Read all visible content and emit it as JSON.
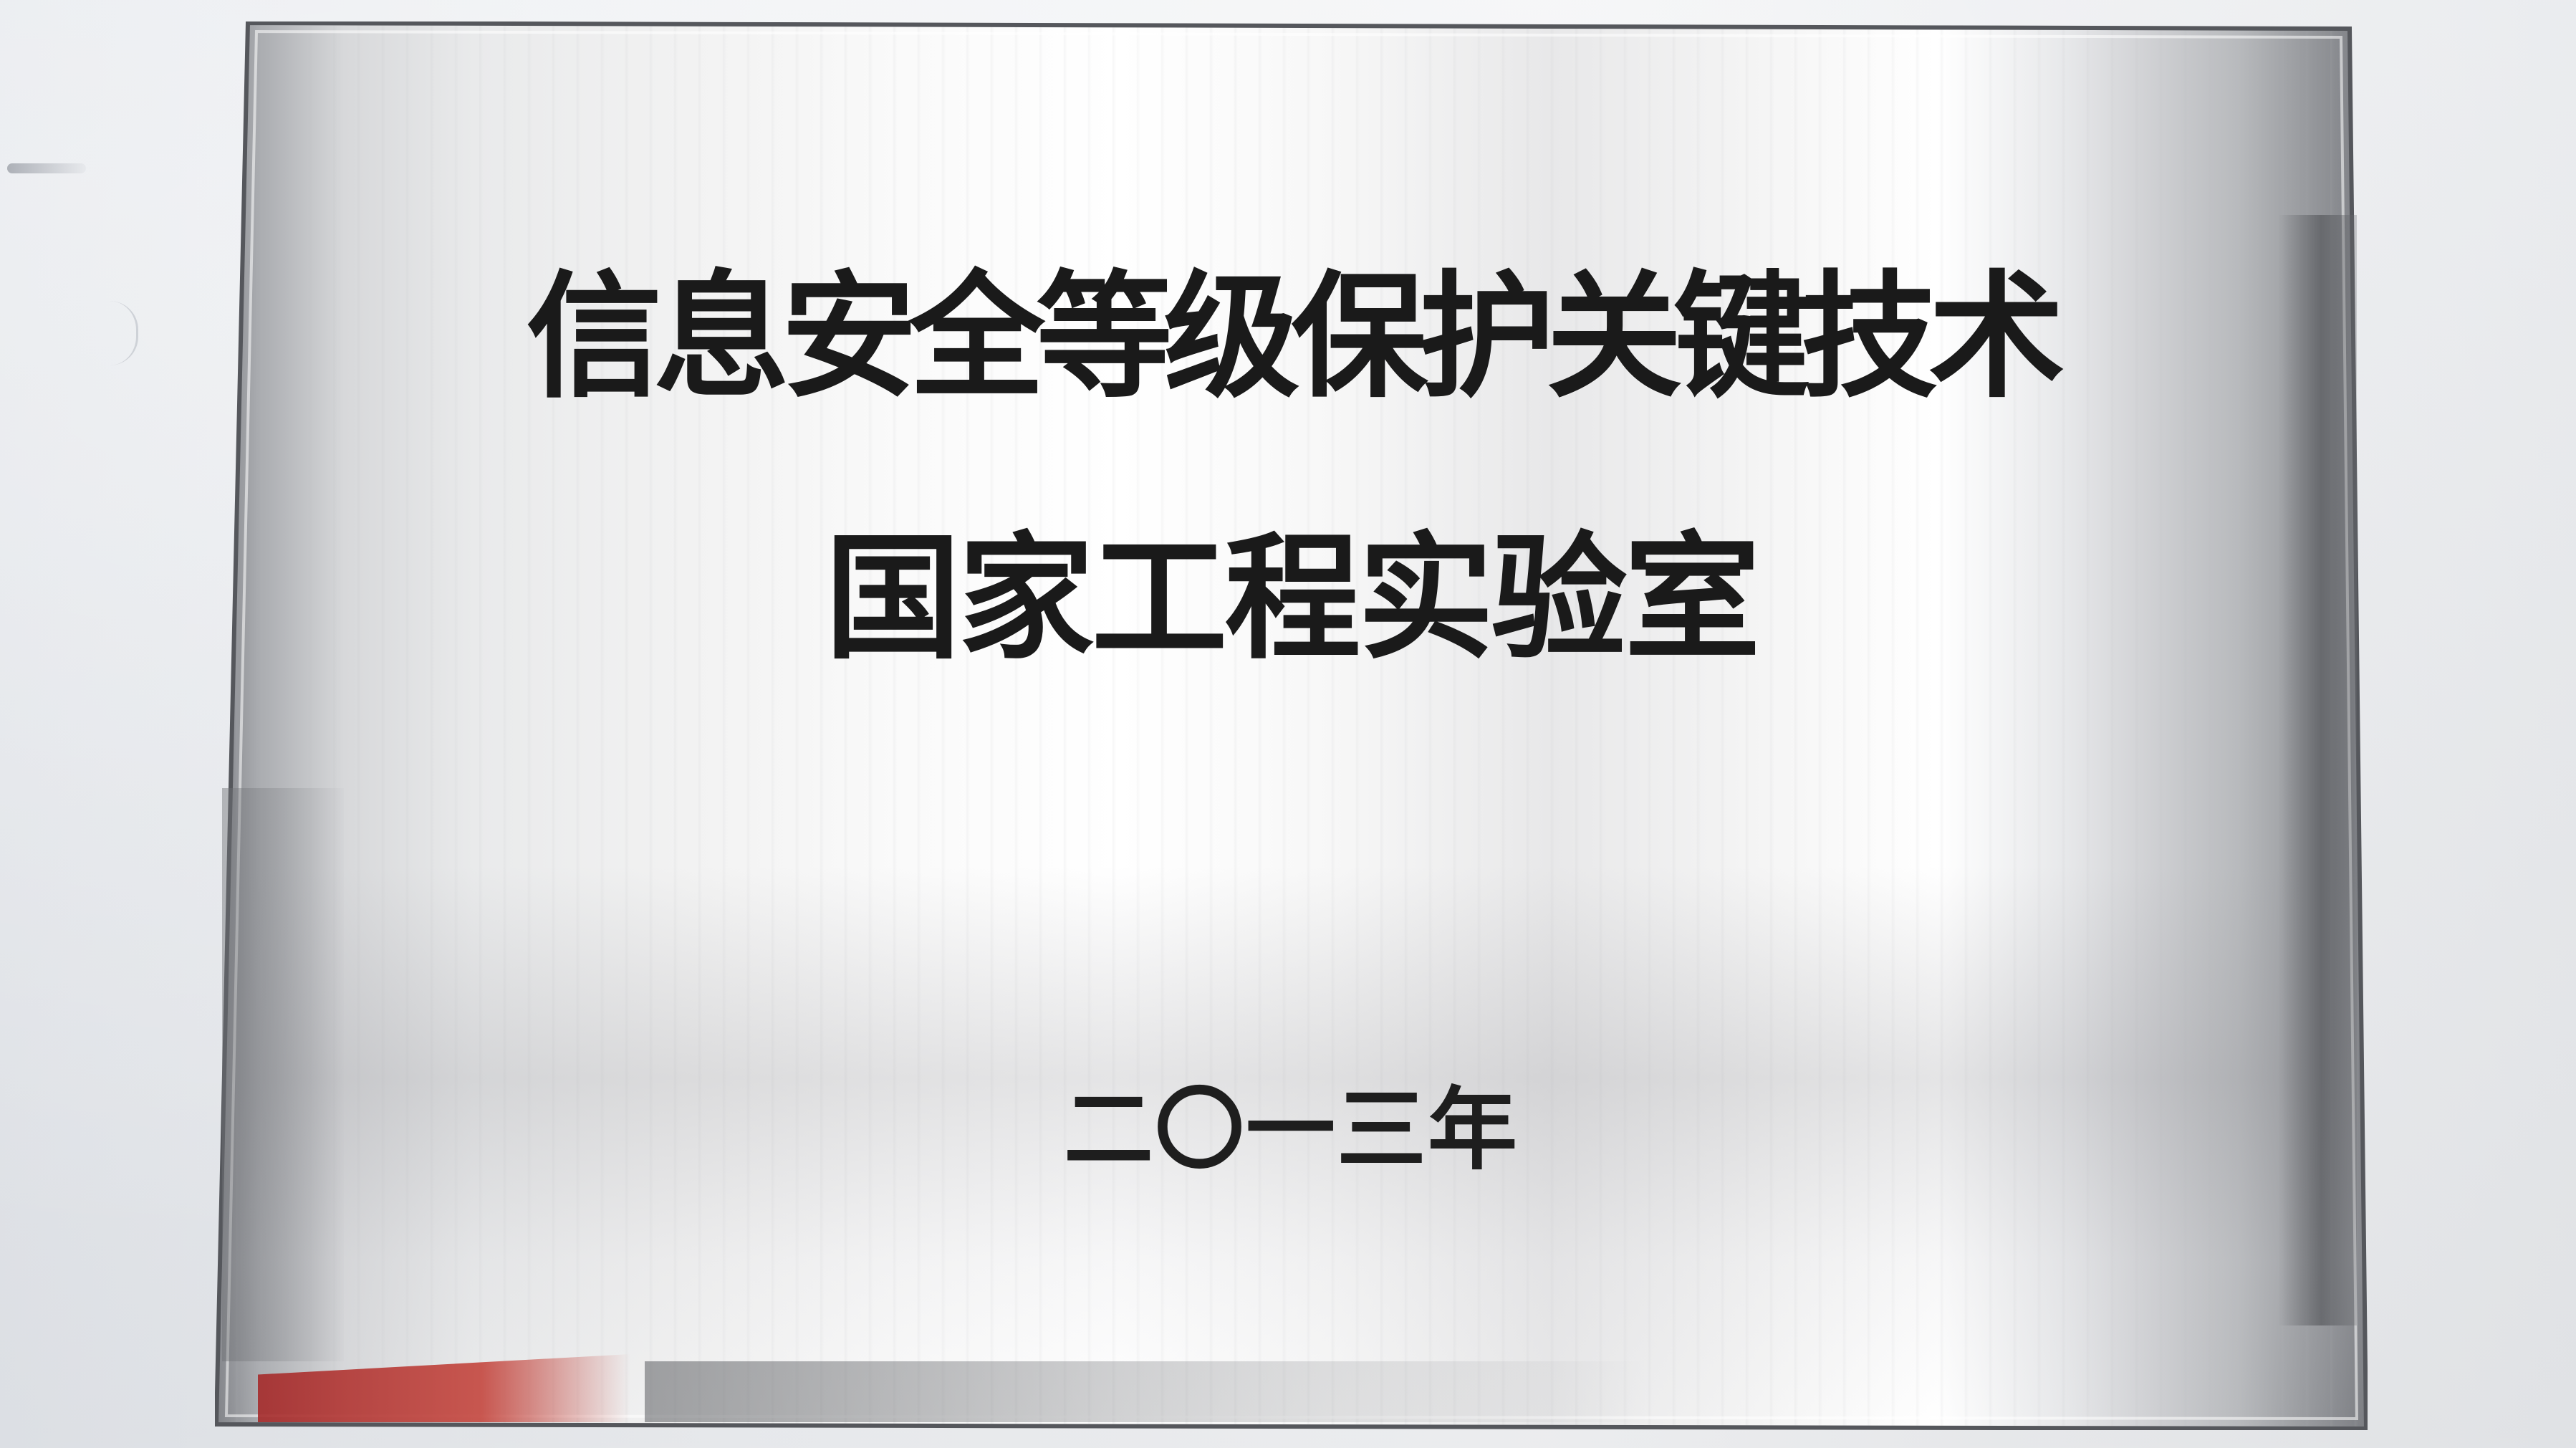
{
  "plaque": {
    "title_line1": "信息安全等级保护关键技术",
    "title_line2": "国家工程实验室",
    "year": "二〇一三年"
  },
  "colors": {
    "wall": "#eef0f3",
    "plaque_metal": "#f2f2f2",
    "engraved_text": "#1a1a1a",
    "reflection_red": "#c4463e"
  }
}
